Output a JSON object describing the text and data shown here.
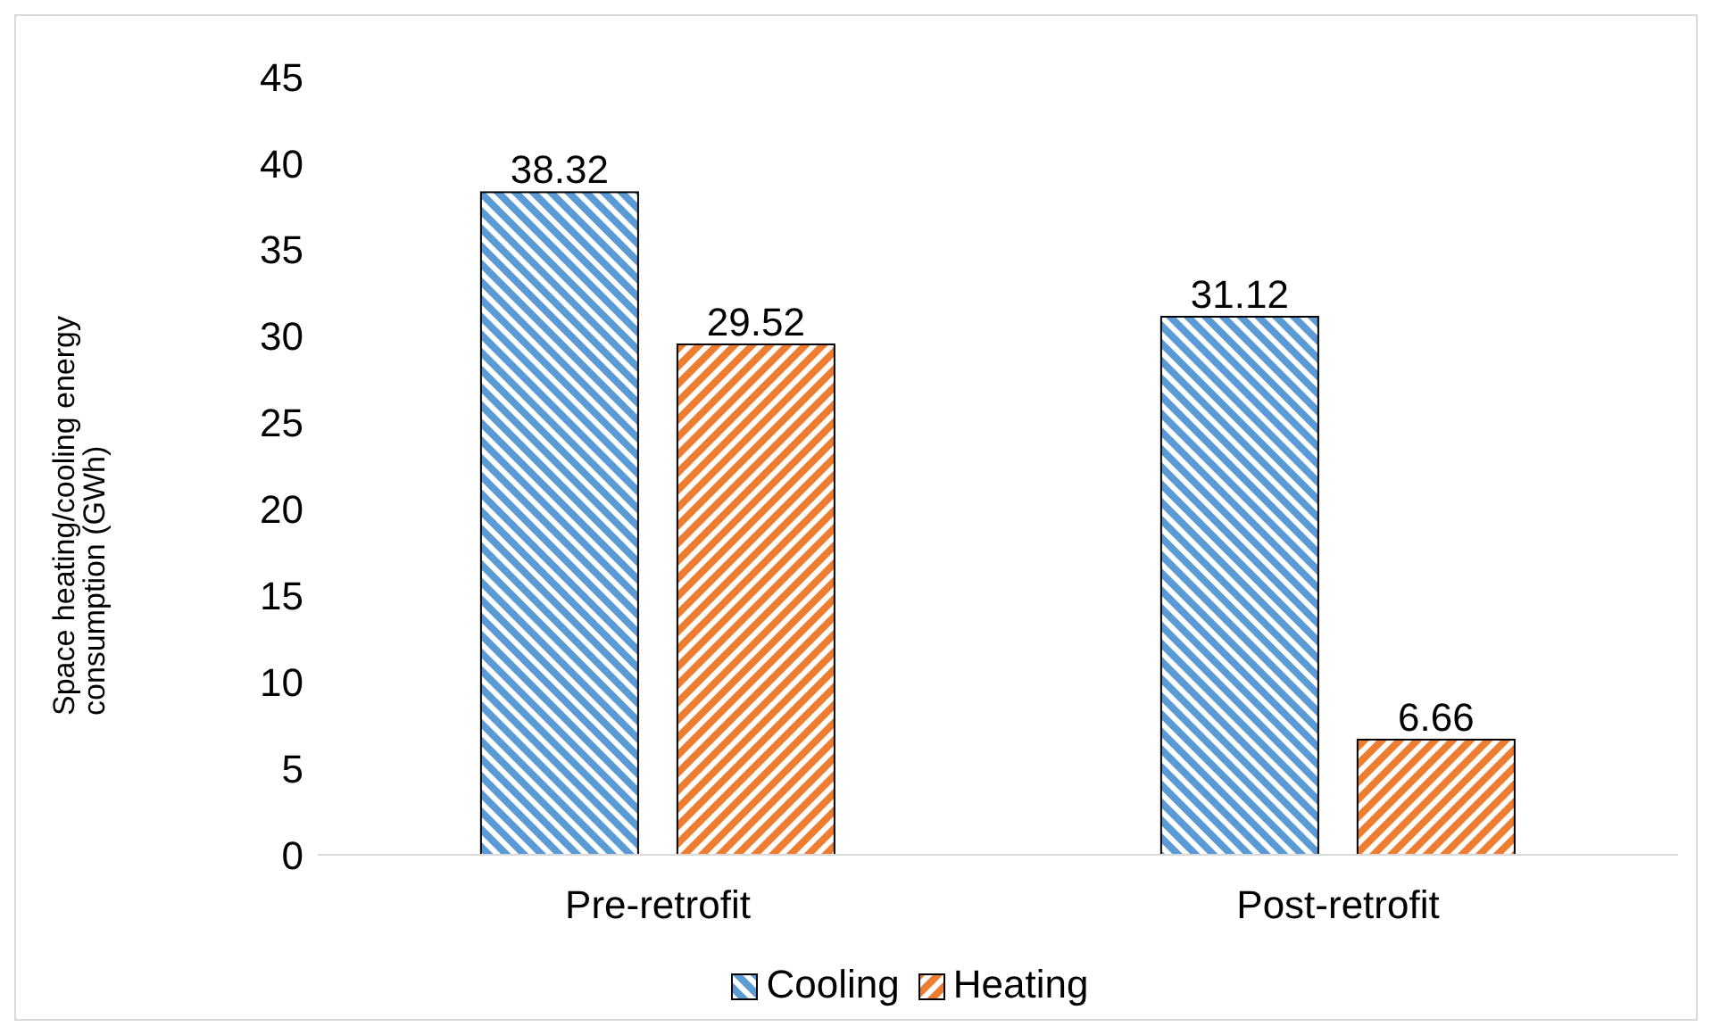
{
  "chart_data": {
    "type": "bar",
    "ylabel": "Space heating/cooling energy consumption (GWh)",
    "categories": [
      "Pre-retrofit",
      "Post-retrofit"
    ],
    "series": [
      {
        "name": "Cooling",
        "color": "#5b9bd5",
        "values": [
          38.32,
          31.12
        ]
      },
      {
        "name": "Heating",
        "color": "#ed7d31",
        "values": [
          29.52,
          6.66
        ]
      }
    ],
    "ylim": [
      0,
      45
    ],
    "yticks": [
      0,
      5,
      10,
      15,
      20,
      25,
      30,
      35,
      40,
      45
    ],
    "grid": false,
    "legend": "bottom",
    "data_labels": true
  }
}
